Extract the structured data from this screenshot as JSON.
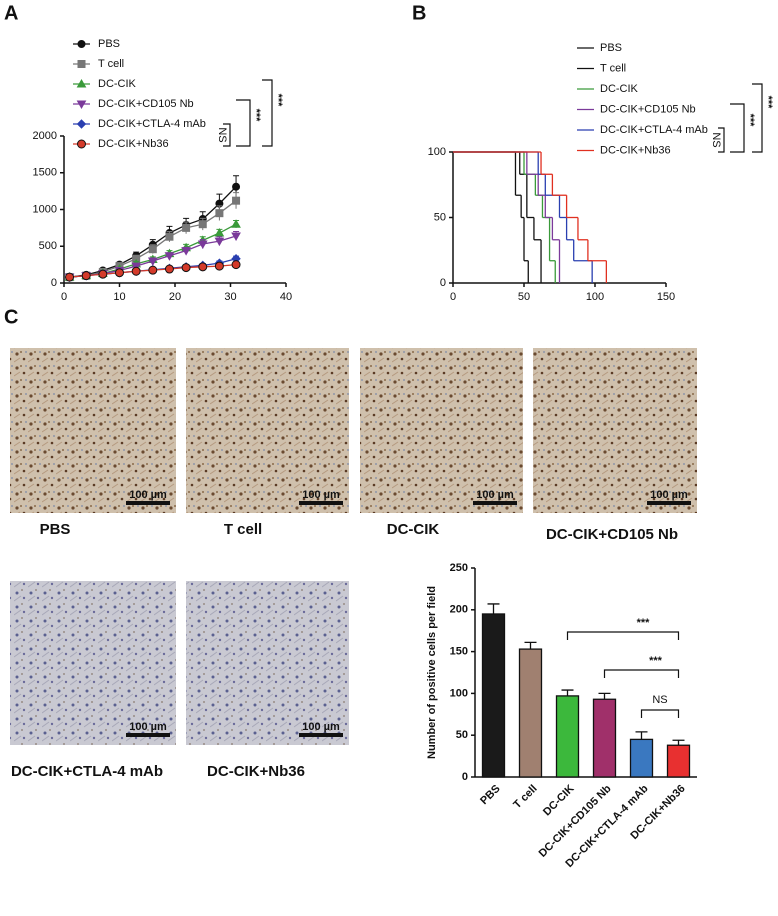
{
  "panel_labels": [
    "A",
    "B",
    "C"
  ],
  "chart_data": [
    {
      "type": "line",
      "x": [
        1,
        4,
        7,
        10,
        13,
        16,
        19,
        22,
        25,
        28,
        31
      ],
      "xlim": [
        0,
        40
      ],
      "xticks": [
        0,
        10,
        20,
        30,
        40
      ],
      "ylim": [
        0,
        2000
      ],
      "yticks": [
        0,
        500,
        1000,
        1500,
        2000
      ],
      "series": [
        {
          "name": "PBS",
          "color": "#111111",
          "marker": "circle",
          "values": [
            80,
            110,
            170,
            250,
            370,
            520,
            680,
            790,
            870,
            1080,
            1310
          ],
          "errors": [
            10,
            15,
            20,
            30,
            50,
            70,
            90,
            90,
            100,
            130,
            150
          ]
        },
        {
          "name": "T cell",
          "color": "#777777",
          "marker": "square",
          "values": [
            80,
            100,
            150,
            230,
            330,
            460,
            630,
            750,
            800,
            950,
            1120
          ],
          "errors": [
            10,
            12,
            18,
            25,
            40,
            60,
            70,
            80,
            80,
            100,
            110
          ]
        },
        {
          "name": "DC-CIK",
          "color": "#3a9a3a",
          "marker": "triangle",
          "values": [
            80,
            100,
            130,
            190,
            260,
            320,
            400,
            480,
            580,
            680,
            800
          ],
          "errors": [
            8,
            10,
            15,
            20,
            30,
            35,
            40,
            45,
            50,
            50,
            50
          ]
        },
        {
          "name": "DC-CIK+CD105 Nb",
          "color": "#7b3a9a",
          "marker": "triangle-down",
          "values": [
            80,
            100,
            130,
            170,
            230,
            300,
            370,
            440,
            530,
            570,
            640
          ],
          "errors": [
            8,
            10,
            15,
            20,
            25,
            30,
            40,
            45,
            60,
            60,
            60
          ]
        },
        {
          "name": "DC-CIK+CTLA-4 mAb",
          "color": "#2a3fb0",
          "marker": "diamond",
          "values": [
            80,
            100,
            120,
            140,
            160,
            180,
            200,
            220,
            240,
            270,
            330
          ],
          "errors": [
            5,
            8,
            10,
            10,
            12,
            15,
            15,
            20,
            25,
            30,
            35
          ]
        },
        {
          "name": "DC-CIK+Nb36",
          "color": "#d43a2a",
          "marker": "circle-edged",
          "values": [
            80,
            100,
            120,
            140,
            160,
            175,
            190,
            210,
            220,
            230,
            250
          ],
          "errors": [
            5,
            8,
            10,
            10,
            12,
            15,
            15,
            20,
            20,
            25,
            30
          ]
        }
      ],
      "annotations": [
        "***",
        "***",
        "NS"
      ]
    },
    {
      "type": "step",
      "xlim": [
        0,
        150
      ],
      "xticks": [
        0,
        50,
        100,
        150
      ],
      "ylim": [
        0,
        100
      ],
      "yticks": [
        0,
        50,
        100
      ],
      "series": [
        {
          "name": "PBS",
          "color": "#111111",
          "x": [
            0,
            44,
            48,
            50,
            53
          ],
          "values": [
            100,
            67,
            50,
            17,
            0
          ]
        },
        {
          "name": "T cell",
          "color": "#111111",
          "x": [
            0,
            47,
            52,
            57,
            62
          ],
          "values": [
            100,
            83,
            50,
            33,
            0
          ]
        },
        {
          "name": "DC-CIK",
          "color": "#3a9a3a",
          "x": [
            0,
            50,
            58,
            63,
            68,
            72
          ],
          "values": [
            100,
            83,
            67,
            50,
            17,
            0
          ]
        },
        {
          "name": "DC-CIK+CD105 Nb",
          "color": "#7b3a9a",
          "x": [
            0,
            52,
            60,
            65,
            70,
            75
          ],
          "values": [
            100,
            83,
            67,
            50,
            33,
            0
          ]
        },
        {
          "name": "DC-CIK+CTLA-4 mAb",
          "color": "#2a3fb0",
          "x": [
            0,
            60,
            65,
            75,
            80,
            85,
            98
          ],
          "values": [
            100,
            83,
            67,
            50,
            33,
            17,
            0
          ]
        },
        {
          "name": "DC-CIK+Nb36",
          "color": "#e03020",
          "x": [
            0,
            62,
            70,
            80,
            88,
            95,
            108
          ],
          "values": [
            100,
            83,
            67,
            50,
            33,
            17,
            0
          ]
        }
      ],
      "annotations": [
        "***",
        "***",
        "NS"
      ]
    },
    {
      "type": "bar",
      "y_label": "Number of positive cells per field",
      "categories": [
        "PBS",
        "T cell",
        "DC-CIK",
        "DC-CIK+CD105 Nb",
        "DC-CIK+CTLA-4 mAb",
        "DC-CIK+Nb36"
      ],
      "values": [
        195,
        153,
        97,
        93,
        45,
        38
      ],
      "errors": [
        12,
        8,
        7,
        7,
        9,
        6
      ],
      "colors": [
        "#1a1a1a",
        "#a08070",
        "#3cb83c",
        "#a0306a",
        "#3a78c0",
        "#e83030"
      ],
      "ylim": [
        0,
        250
      ],
      "yticks": [
        0,
        50,
        100,
        150,
        200,
        250
      ],
      "annotations": [
        "***",
        "***",
        "NS"
      ]
    }
  ],
  "images": {
    "labels": [
      "PBS",
      "T cell",
      "DC-CIK",
      "DC-CIK+CD105 Nb",
      "DC-CIK+CTLA-4 mAb",
      "DC-CIK+Nb36"
    ],
    "scale_bar": "100 µm"
  }
}
